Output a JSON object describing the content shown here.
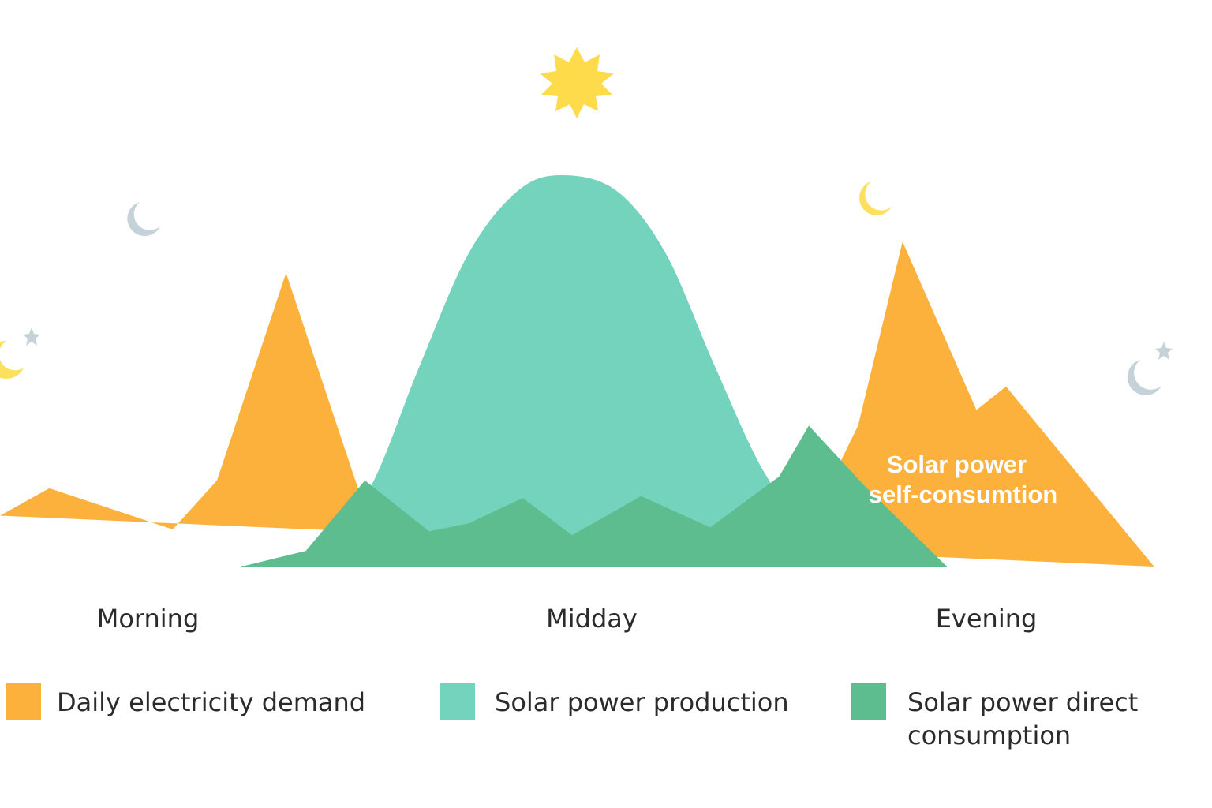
{
  "chart_data": {
    "type": "area",
    "title": "",
    "xlabel": "",
    "ylabel": "",
    "x_domain": [
      0,
      24
    ],
    "ylim": [
      0,
      100
    ],
    "grid": false,
    "legend_placement": "bottom",
    "categories": [
      "Morning",
      "Midday",
      "Evening"
    ],
    "category_positions": [
      3,
      12,
      20
    ],
    "series": [
      {
        "name": "Daily electricity demand",
        "color": "#fbb13c",
        "points": [
          [
            0,
            13
          ],
          [
            1,
            20
          ],
          [
            3.5,
            9.5
          ],
          [
            4.4,
            22
          ],
          [
            5.8,
            75
          ],
          [
            7.3,
            18.5
          ],
          [
            10,
            0
          ],
          [
            11,
            0
          ],
          [
            12,
            0
          ],
          [
            14,
            0
          ],
          [
            15,
            0
          ],
          [
            16,
            0
          ],
          [
            17.4,
            36
          ],
          [
            18.3,
            83
          ],
          [
            19.8,
            40
          ],
          [
            20.4,
            46
          ],
          [
            23.4,
            0
          ]
        ]
      },
      {
        "name": "Solar power production",
        "color": "#73d3bd",
        "points": [
          [
            4.9,
            0
          ],
          [
            6.5,
            5
          ],
          [
            7.5,
            20
          ],
          [
            8.5,
            51
          ],
          [
            9.5,
            80
          ],
          [
            10.5,
            96
          ],
          [
            11.4,
            100
          ],
          [
            12.5,
            96
          ],
          [
            13.5,
            80
          ],
          [
            14.5,
            51
          ],
          [
            15.5,
            24
          ],
          [
            16.5,
            8
          ],
          [
            17.5,
            2
          ],
          [
            18,
            0
          ]
        ]
      },
      {
        "name": "Solar power direct consumption",
        "color": "#5dbd8e",
        "points": [
          [
            4.9,
            0
          ],
          [
            6.2,
            4
          ],
          [
            7.4,
            22
          ],
          [
            8.7,
            9
          ],
          [
            9.5,
            11
          ],
          [
            10.6,
            17.5
          ],
          [
            11.6,
            8
          ],
          [
            13,
            18
          ],
          [
            14.4,
            10
          ],
          [
            15.8,
            23
          ],
          [
            16.4,
            36
          ],
          [
            17.5,
            21
          ],
          [
            19.2,
            0
          ]
        ]
      }
    ],
    "annotations": [
      {
        "text_lines": [
          "Solar power",
          "self-consumtion"
        ],
        "x": 19.4,
        "y": 24
      }
    ],
    "colors": {
      "demand": "#fbb13c",
      "production": "#73d3bd",
      "direct": "#5dbd8e",
      "overlap": "#72c48c",
      "sun": "#fddb4a",
      "moon_gray": "#c6d2da",
      "moon_yellow": "#fde060",
      "baseline": "#5dbd8e"
    },
    "decorations": [
      {
        "kind": "sun-icon"
      },
      {
        "kind": "moon-icon",
        "tone": "gray"
      },
      {
        "kind": "moon-icon",
        "tone": "yellow"
      },
      {
        "kind": "moon-icon",
        "tone": "gray"
      },
      {
        "kind": "moon-icon",
        "tone": "yellow"
      },
      {
        "kind": "star-icon"
      },
      {
        "kind": "star-icon"
      }
    ]
  }
}
